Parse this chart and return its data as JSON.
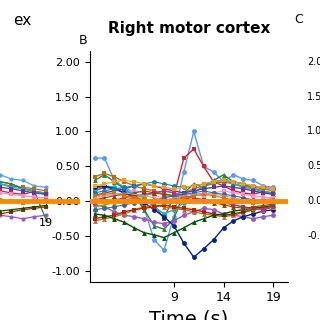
{
  "title": "Right motor cortex",
  "panel_label": "B",
  "xlabel": "Time (s)",
  "ylim": [
    -1.15,
    2.15
  ],
  "yticks": [
    -1.0,
    -0.5,
    0.0,
    0.5,
    1.0,
    1.5,
    2.0
  ],
  "xticks": [
    9,
    14,
    19
  ],
  "xticklabels": [
    "9",
    "14",
    "19"
  ],
  "xlim": [
    0.5,
    20.5
  ],
  "orange_line_y": 0.0,
  "n_timepoints": 19,
  "background_color": "#ffffff",
  "series": [
    {
      "color": "#5599ff",
      "marker": "o",
      "lw": 1.0,
      "data": [
        0.62,
        0.62,
        0.3,
        0.2,
        0.12,
        -0.1,
        -0.55,
        -0.7,
        -0.22,
        0.42,
        1.0,
        0.5,
        0.42,
        0.28,
        0.38,
        0.32,
        0.3,
        0.22,
        0.2
      ]
    },
    {
      "color": "#dd2222",
      "marker": "s",
      "lw": 1.0,
      "data": [
        0.15,
        0.2,
        0.18,
        0.12,
        0.05,
        0.02,
        -0.05,
        -0.25,
        0.08,
        0.62,
        0.75,
        0.5,
        0.28,
        0.22,
        0.15,
        0.12,
        0.1,
        0.14,
        0.12
      ]
    },
    {
      "color": "#228833",
      "marker": "^",
      "lw": 1.0,
      "data": [
        0.3,
        0.38,
        0.28,
        0.18,
        0.08,
        -0.12,
        -0.35,
        -0.4,
        -0.25,
        0.12,
        0.25,
        0.2,
        0.3,
        0.38,
        0.28,
        0.25,
        0.18,
        0.15,
        0.1
      ]
    },
    {
      "color": "#cc6600",
      "marker": "s",
      "lw": 1.0,
      "data": [
        0.35,
        0.4,
        0.35,
        0.28,
        0.22,
        0.18,
        0.15,
        0.1,
        0.08,
        0.12,
        0.18,
        0.22,
        0.25,
        0.28,
        0.25,
        0.22,
        0.2,
        0.18,
        0.15
      ]
    },
    {
      "color": "#9955cc",
      "marker": "o",
      "lw": 1.0,
      "data": [
        -0.05,
        -0.08,
        -0.15,
        -0.2,
        -0.22,
        -0.25,
        -0.3,
        -0.32,
        -0.28,
        -0.2,
        -0.15,
        -0.1,
        -0.12,
        -0.18,
        -0.2,
        -0.22,
        -0.25,
        -0.22,
        -0.2
      ]
    },
    {
      "color": "#ff88cc",
      "marker": "s",
      "lw": 0.8,
      "data": [
        0.05,
        0.08,
        0.1,
        0.12,
        0.15,
        0.12,
        0.08,
        0.05,
        0.08,
        0.12,
        0.1,
        0.08,
        0.12,
        0.15,
        0.12,
        0.1,
        0.08,
        0.06,
        0.05
      ]
    },
    {
      "color": "#00bbcc",
      "marker": "o",
      "lw": 1.0,
      "data": [
        0.18,
        0.22,
        0.2,
        0.15,
        0.1,
        0.05,
        -0.08,
        -0.18,
        -0.12,
        -0.02,
        0.12,
        0.22,
        0.28,
        0.3,
        0.25,
        0.2,
        0.18,
        0.14,
        0.12
      ]
    },
    {
      "color": "#002299",
      "marker": "o",
      "lw": 1.0,
      "data": [
        0.2,
        0.22,
        0.18,
        0.12,
        0.08,
        -0.02,
        -0.12,
        -0.22,
        -0.35,
        -0.6,
        -0.8,
        -0.68,
        -0.55,
        -0.38,
        -0.28,
        -0.22,
        -0.18,
        -0.14,
        -0.12
      ]
    },
    {
      "color": "#aa7733",
      "marker": "^",
      "lw": 1.0,
      "data": [
        -0.28,
        -0.25,
        -0.22,
        -0.18,
        -0.12,
        -0.08,
        -0.05,
        -0.08,
        -0.1,
        -0.12,
        -0.15,
        -0.18,
        -0.2,
        -0.22,
        -0.2,
        -0.16,
        -0.12,
        -0.1,
        -0.08
      ]
    },
    {
      "color": "#bb2200",
      "marker": "s",
      "lw": 1.0,
      "data": [
        -0.25,
        -0.22,
        -0.2,
        -0.15,
        -0.12,
        -0.1,
        -0.08,
        -0.05,
        -0.08,
        -0.1,
        -0.12,
        -0.15,
        -0.18,
        -0.2,
        -0.18,
        -0.15,
        -0.12,
        -0.1,
        -0.08
      ]
    },
    {
      "color": "#005500",
      "marker": "^",
      "lw": 1.0,
      "data": [
        -0.18,
        -0.2,
        -0.25,
        -0.3,
        -0.38,
        -0.45,
        -0.48,
        -0.52,
        -0.45,
        -0.38,
        -0.3,
        -0.25,
        -0.2,
        -0.18,
        -0.14,
        -0.12,
        -0.1,
        -0.08,
        -0.06
      ]
    },
    {
      "color": "#6633aa",
      "marker": "s",
      "lw": 1.0,
      "data": [
        0.08,
        0.12,
        0.15,
        0.18,
        0.22,
        0.25,
        0.22,
        0.18,
        0.15,
        0.12,
        0.15,
        0.18,
        0.2,
        0.22,
        0.2,
        0.18,
        0.15,
        0.12,
        0.1
      ]
    },
    {
      "color": "#0088bb",
      "marker": "o",
      "lw": 0.8,
      "data": [
        0.12,
        0.15,
        0.18,
        0.2,
        0.22,
        0.25,
        0.28,
        0.25,
        0.22,
        0.2,
        0.22,
        0.25,
        0.28,
        0.3,
        0.28,
        0.25,
        0.22,
        0.2,
        0.18
      ]
    },
    {
      "color": "#ff9900",
      "marker": "s",
      "lw": 0.8,
      "data": [
        0.22,
        0.25,
        0.28,
        0.3,
        0.28,
        0.25,
        0.22,
        0.2,
        0.18,
        0.2,
        0.22,
        0.25,
        0.28,
        0.3,
        0.28,
        0.25,
        0.22,
        0.2,
        0.18
      ]
    },
    {
      "color": "#88aa00",
      "marker": "^",
      "lw": 1.0,
      "data": [
        -0.08,
        -0.05,
        -0.02,
        0.02,
        0.05,
        0.08,
        0.12,
        0.15,
        0.12,
        0.08,
        0.05,
        0.02,
        0.0,
        -0.02,
        -0.05,
        -0.08,
        -0.1,
        -0.12,
        -0.08
      ]
    },
    {
      "color": "#cc2299",
      "marker": "s",
      "lw": 0.8,
      "data": [
        -0.02,
        0.0,
        0.02,
        0.05,
        0.08,
        0.1,
        0.12,
        0.15,
        0.12,
        0.08,
        0.05,
        0.02,
        0.0,
        -0.02,
        -0.05,
        -0.08,
        -0.1,
        -0.12,
        -0.08
      ]
    },
    {
      "color": "#884400",
      "marker": "^",
      "lw": 0.8,
      "data": [
        0.02,
        0.05,
        0.08,
        0.1,
        0.12,
        0.15,
        0.12,
        0.1,
        0.08,
        0.05,
        0.02,
        0.0,
        -0.02,
        -0.05,
        -0.08,
        -0.1,
        -0.08,
        -0.06,
        -0.04
      ]
    },
    {
      "color": "#3366aa",
      "marker": "o",
      "lw": 0.8,
      "data": [
        -0.12,
        -0.1,
        -0.08,
        -0.05,
        -0.02,
        0.0,
        0.02,
        0.05,
        0.08,
        0.1,
        0.12,
        0.15,
        0.12,
        0.1,
        0.08,
        0.05,
        0.02,
        0.0,
        -0.02
      ]
    },
    {
      "color": "#ee6600",
      "marker": "s",
      "lw": 0.8,
      "data": [
        0.08,
        0.1,
        0.12,
        0.08,
        0.05,
        0.02,
        0.0,
        -0.02,
        0.02,
        0.05,
        0.08,
        0.1,
        0.08,
        0.05,
        0.02,
        0.0,
        -0.02,
        0.0,
        0.02
      ]
    },
    {
      "color": "#aaaaaa",
      "marker": "x",
      "lw": 0.8,
      "data": [
        0.05,
        0.08,
        0.1,
        0.12,
        0.1,
        0.08,
        0.05,
        0.02,
        0.05,
        0.08,
        0.1,
        0.12,
        0.1,
        0.08,
        0.05,
        0.02,
        0.0,
        0.02,
        0.05
      ]
    }
  ]
}
